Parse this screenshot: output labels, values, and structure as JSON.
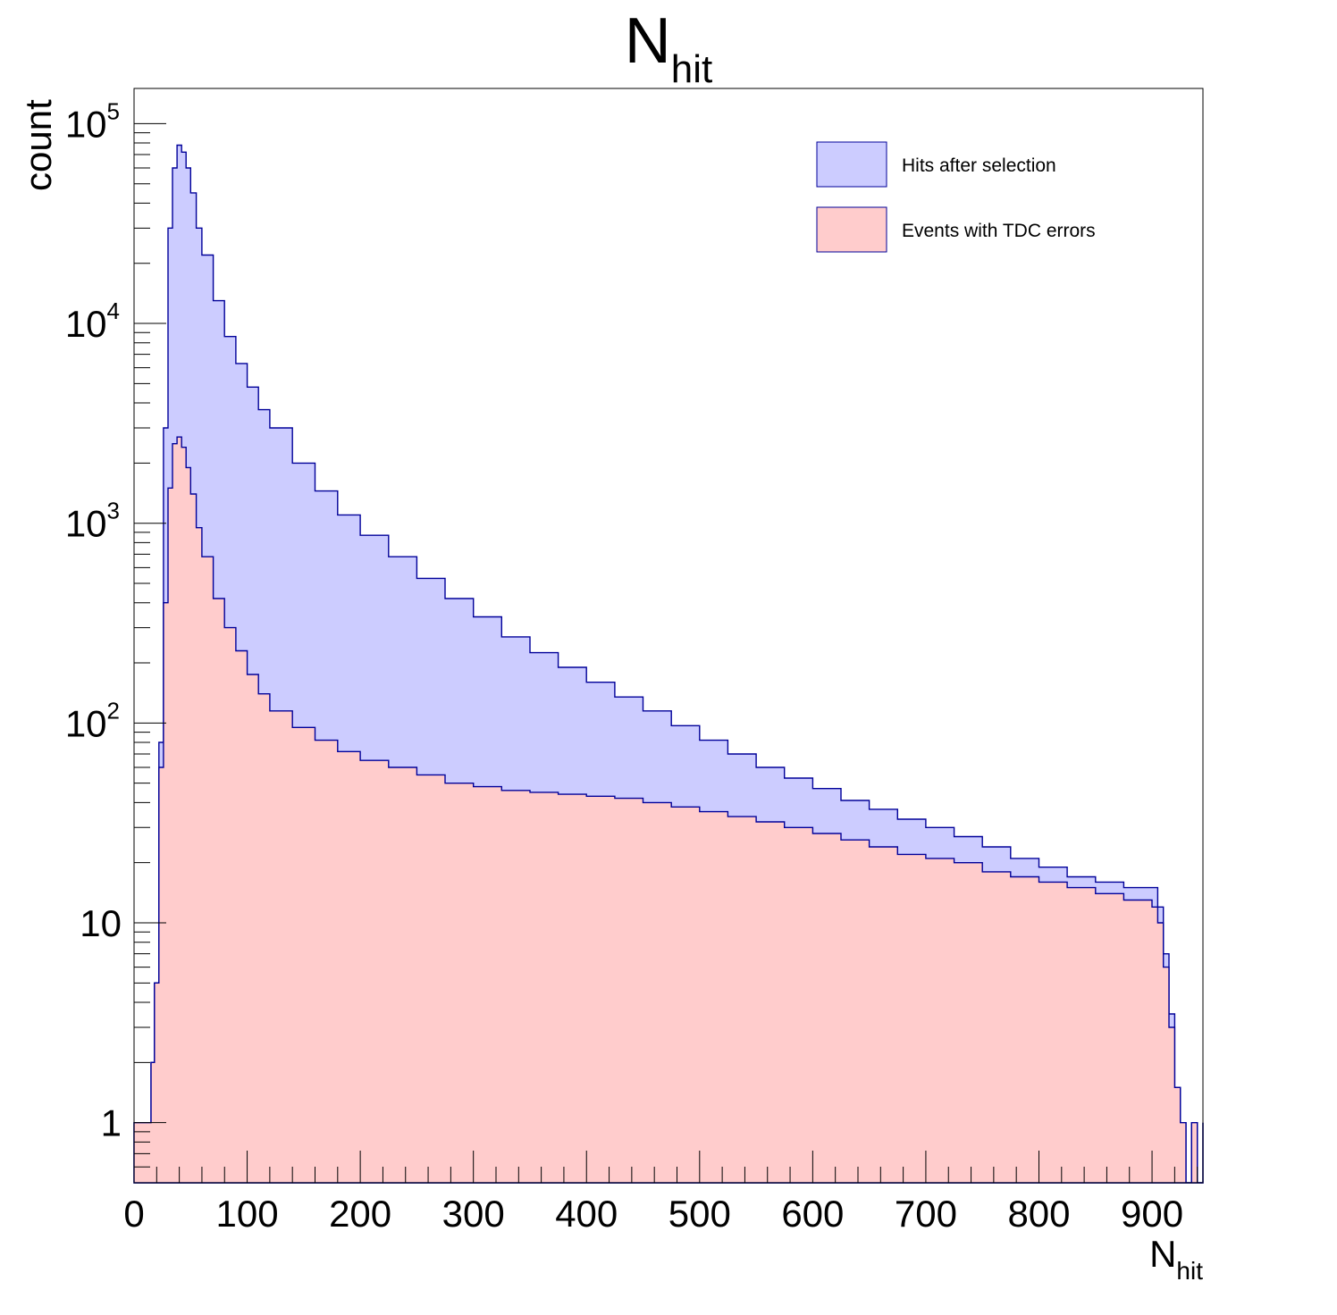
{
  "chart_data": {
    "type": "area",
    "title": "N",
    "title_subscript": "hit",
    "xlabel": "N",
    "xlabel_subscript": "hit",
    "ylabel": "count",
    "xlim": [
      0,
      945
    ],
    "ylim": [
      0.5,
      150000
    ],
    "y_scale": "log",
    "grid": false,
    "legend_position": "top-right",
    "x_ticks": [
      0,
      100,
      200,
      300,
      400,
      500,
      600,
      700,
      800,
      900
    ],
    "y_ticks": [
      {
        "value": 1,
        "base": "1",
        "exp": ""
      },
      {
        "value": 10,
        "base": "10",
        "exp": ""
      },
      {
        "value": 100,
        "base": "10",
        "exp": "2"
      },
      {
        "value": 1000,
        "base": "10",
        "exp": "3"
      },
      {
        "value": 10000,
        "base": "10",
        "exp": "4"
      },
      {
        "value": 100000,
        "base": "10",
        "exp": "5"
      }
    ],
    "series": [
      {
        "name": "Hits after selection",
        "fill": "#ccccff",
        "line": "#000099",
        "x": [
          0,
          10,
          15,
          18,
          22,
          26,
          30,
          34,
          38,
          42,
          46,
          50,
          55,
          60,
          70,
          80,
          90,
          100,
          110,
          120,
          140,
          160,
          180,
          200,
          225,
          250,
          275,
          300,
          325,
          350,
          375,
          400,
          425,
          450,
          475,
          500,
          525,
          550,
          575,
          600,
          625,
          650,
          675,
          700,
          725,
          750,
          775,
          800,
          825,
          850,
          875,
          900,
          905,
          910,
          915,
          920,
          925,
          930,
          935,
          940,
          945
        ],
        "values": [
          1,
          1,
          2,
          5,
          80,
          3000,
          30000,
          60000,
          78000,
          72000,
          60000,
          45000,
          30000,
          22000,
          13000,
          8600,
          6300,
          4800,
          3700,
          3000,
          2000,
          1450,
          1100,
          870,
          680,
          530,
          420,
          340,
          270,
          225,
          190,
          160,
          135,
          115,
          97,
          82,
          70,
          60,
          53,
          47,
          41,
          37,
          33,
          30,
          27,
          24,
          21,
          19,
          17,
          16,
          15,
          15,
          12,
          7,
          3.5,
          1.5,
          1,
          0.5,
          1,
          0.5,
          1
        ]
      },
      {
        "name": "Events with TDC errors",
        "fill": "#ffcccc",
        "line": "#000099",
        "x": [
          0,
          10,
          15,
          18,
          22,
          26,
          30,
          34,
          38,
          42,
          46,
          50,
          55,
          60,
          70,
          80,
          90,
          100,
          110,
          120,
          140,
          160,
          180,
          200,
          225,
          250,
          275,
          300,
          325,
          350,
          375,
          400,
          425,
          450,
          475,
          500,
          525,
          550,
          575,
          600,
          625,
          650,
          675,
          700,
          725,
          750,
          775,
          800,
          825,
          850,
          875,
          900,
          905,
          910,
          915,
          920,
          925,
          930,
          935,
          940,
          945
        ],
        "values": [
          1,
          1,
          2,
          5,
          60,
          400,
          1500,
          2500,
          2700,
          2400,
          1900,
          1400,
          950,
          680,
          420,
          300,
          230,
          175,
          140,
          115,
          95,
          82,
          72,
          65,
          60,
          55,
          50,
          48,
          46,
          45,
          44,
          43,
          42,
          40,
          38,
          36,
          34,
          32,
          30,
          28,
          26,
          24,
          22,
          21,
          20,
          18,
          17,
          16,
          15,
          14,
          13,
          12,
          10,
          6,
          3,
          1.5,
          1,
          0.5,
          1,
          0.5,
          1
        ]
      }
    ]
  }
}
